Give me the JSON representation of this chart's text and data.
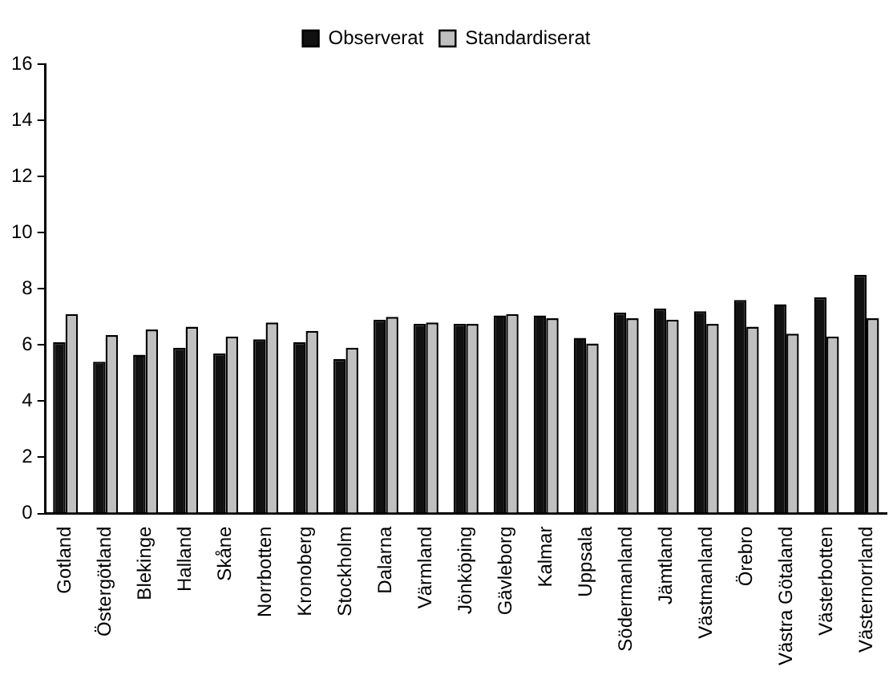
{
  "chart_data": {
    "type": "bar",
    "categories": [
      "Gotland",
      "Östergötland",
      "Blekinge",
      "Halland",
      "Skåne",
      "Norrbotten",
      "Kronoberg",
      "Stockholm",
      "Dalarna",
      "Värmland",
      "Jönköping",
      "Gävleborg",
      "Kalmar",
      "Uppsala",
      "Södermanland",
      "Jämtland",
      "Västmanland",
      "Örebro",
      "Västra Götaland",
      "Västerbotten",
      "Västernorrland"
    ],
    "series": [
      {
        "name": "Observerat",
        "color": "#111111",
        "values": [
          6.1,
          5.4,
          5.65,
          5.9,
          5.7,
          6.2,
          6.1,
          5.5,
          6.9,
          6.75,
          6.75,
          7.05,
          7.05,
          6.25,
          7.15,
          7.3,
          7.2,
          7.6,
          7.45,
          7.7,
          8.5
        ]
      },
      {
        "name": "Standardiserat",
        "color": "#c0c0c0",
        "values": [
          7.1,
          6.35,
          6.55,
          6.65,
          6.3,
          6.8,
          6.5,
          5.9,
          7.0,
          6.8,
          6.75,
          7.1,
          6.95,
          6.05,
          6.95,
          6.9,
          6.75,
          6.65,
          6.4,
          6.3,
          6.95
        ]
      }
    ],
    "ylim": [
      0,
      16
    ],
    "yticks": [
      0,
      2,
      4,
      6,
      8,
      10,
      12,
      14,
      16
    ],
    "grid": false,
    "legend": "top"
  }
}
